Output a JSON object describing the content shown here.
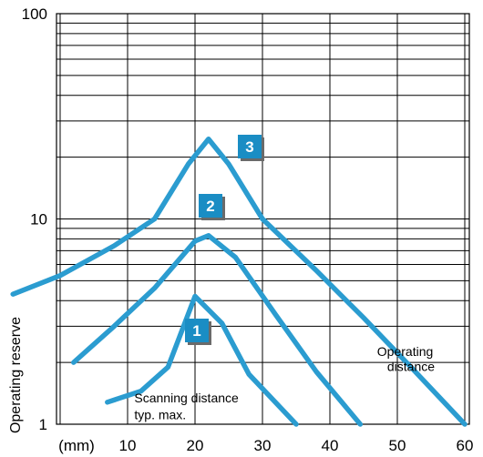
{
  "chart_data": {
    "type": "line",
    "xlabel": "(mm)",
    "ylabel": "Operating reserve",
    "x_ticks": [
      10,
      20,
      30,
      40,
      50,
      60
    ],
    "y_ticks": [
      "1",
      "10",
      "100"
    ],
    "xlim": [
      0,
      60
    ],
    "ylim": [
      1,
      100
    ],
    "y_scale": "log",
    "grid": true,
    "series": [
      {
        "name": "1",
        "x": [
          7,
          12,
          16,
          20,
          24,
          28,
          35
        ],
        "y": [
          1.28,
          1.45,
          1.9,
          4.2,
          3.1,
          1.75,
          1.0
        ]
      },
      {
        "name": "2",
        "x": [
          2,
          8,
          14,
          20,
          22,
          26,
          32,
          38,
          44.5
        ],
        "y": [
          2.0,
          3.0,
          4.6,
          7.8,
          8.3,
          6.5,
          3.4,
          1.8,
          1.0
        ]
      },
      {
        "name": "3",
        "x": [
          -7,
          0,
          8,
          14,
          19,
          22,
          25,
          30,
          38,
          45,
          52,
          60
        ],
        "y": [
          4.3,
          5.3,
          7.4,
          10.0,
          18.5,
          24.5,
          18.5,
          10.0,
          5.6,
          3.3,
          1.9,
          1.0
        ]
      }
    ],
    "annotations": [
      {
        "text": "Scanning distance",
        "x": 11,
        "y": 1.28
      },
      {
        "text": "typ. max.",
        "x": 11,
        "y": 1.06
      },
      {
        "text": "Operating",
        "x": 47,
        "y": 2.15
      },
      {
        "text": "distance",
        "x": 48.5,
        "y": 1.82
      }
    ],
    "colors": {
      "curve": "#2b9cd0",
      "badge": "#1a8dc4",
      "grid": "#000000"
    }
  }
}
